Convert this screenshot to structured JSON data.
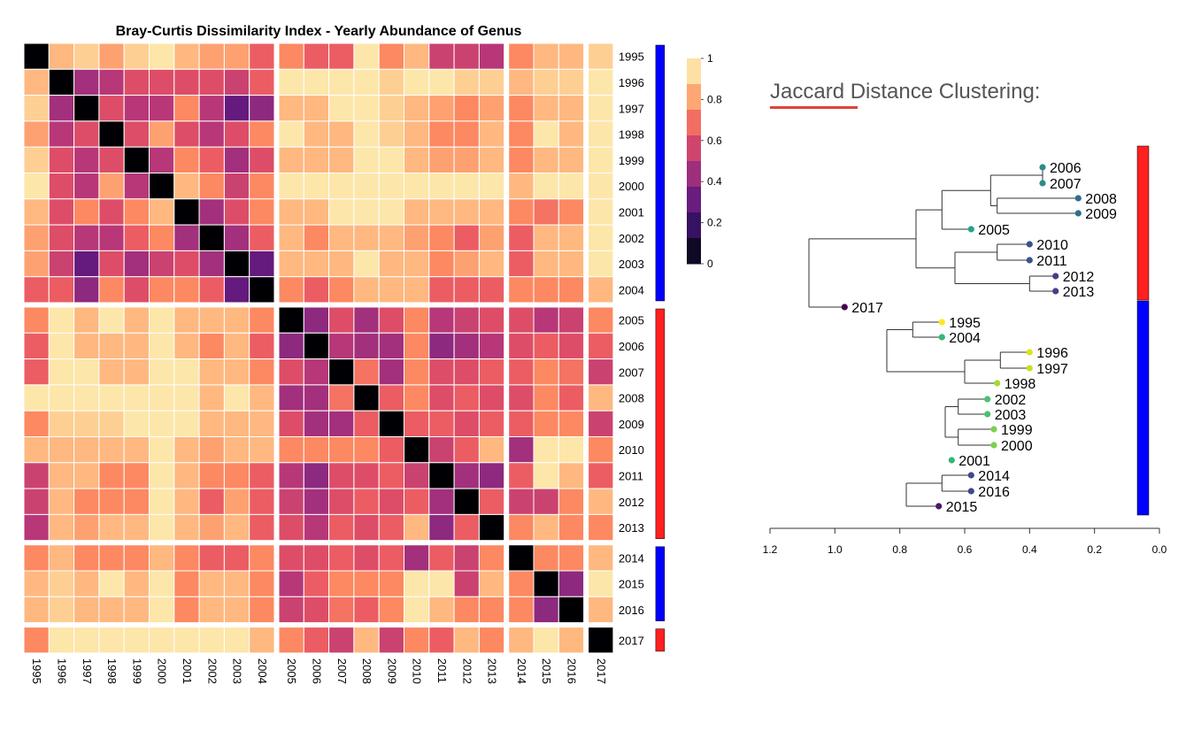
{
  "colors": {
    "scale": [
      "#000004",
      "#1f1147",
      "#51127c",
      "#822681",
      "#b73779",
      "#e75263",
      "#fc8961",
      "#fec488",
      "#fcfdbf"
    ],
    "cluster_red": "#ff2020",
    "cluster_blue": "#0000ff",
    "grid": "#ffffff",
    "text": "#000000"
  },
  "heatmap": {
    "title": "Bray-Curtis Dissimilarity Index - Yearly Abundance of Genus",
    "years": [
      "1995",
      "1996",
      "1997",
      "1998",
      "1999",
      "2000",
      "2001",
      "2002",
      "2003",
      "2004",
      "2005",
      "2006",
      "2007",
      "2008",
      "2009",
      "2010",
      "2011",
      "2012",
      "2013",
      "2014",
      "2015",
      "2016",
      "2017"
    ],
    "cluster_bars": [
      {
        "years": [
          "1995",
          "2004"
        ],
        "color": "blue"
      },
      {
        "years": [
          "2005",
          "2013"
        ],
        "color": "red"
      },
      {
        "years": [
          "2014",
          "2016"
        ],
        "color": "blue"
      },
      {
        "years": [
          "2017",
          "2017"
        ],
        "color": "red"
      }
    ],
    "legend_ticks": [
      "1",
      "0.8",
      "0.6",
      "0.4",
      "0.2",
      "0"
    ]
  },
  "dendrogram": {
    "title_word": "Jaccard",
    "title_rest": " Distance Clustering:",
    "axis_ticks": [
      "1.2",
      "1.0",
      "0.8",
      "0.6",
      "0.4",
      "0.2",
      "0.0"
    ]
  },
  "chart_data": [
    {
      "type": "heatmap",
      "title": "Bray-Curtis Dissimilarity Index - Yearly Abundance of Genus",
      "x": [
        "1995",
        "1996",
        "1997",
        "1998",
        "1999",
        "2000",
        "2001",
        "2002",
        "2003",
        "2004",
        "2005",
        "2006",
        "2007",
        "2008",
        "2009",
        "2010",
        "2011",
        "2012",
        "2013",
        "2014",
        "2015",
        "2016",
        "2017"
      ],
      "y": [
        "1995",
        "1996",
        "1997",
        "1998",
        "1999",
        "2000",
        "2001",
        "2002",
        "2003",
        "2004",
        "2005",
        "2006",
        "2007",
        "2008",
        "2009",
        "2010",
        "2011",
        "2012",
        "2013",
        "2014",
        "2015",
        "2016",
        "2017"
      ],
      "values": [
        [
          0,
          0.85,
          0.9,
          0.8,
          0.9,
          0.95,
          0.85,
          0.8,
          0.8,
          0.65,
          0.75,
          0.65,
          0.65,
          0.95,
          0.75,
          0.85,
          0.55,
          0.55,
          0.5,
          0.75,
          0.85,
          0.85,
          0.9
        ],
        [
          0.85,
          0,
          0.45,
          0.5,
          0.6,
          0.6,
          0.6,
          0.6,
          0.55,
          0.65,
          0.95,
          0.95,
          0.95,
          0.95,
          0.9,
          0.95,
          0.95,
          0.9,
          0.9,
          0.85,
          0.9,
          0.9,
          0.95
        ],
        [
          0.9,
          0.45,
          0,
          0.6,
          0.5,
          0.5,
          0.75,
          0.5,
          0.3,
          0.4,
          0.85,
          0.85,
          0.95,
          0.95,
          0.9,
          0.85,
          0.8,
          0.75,
          0.8,
          0.75,
          0.85,
          0.85,
          0.95
        ],
        [
          0.8,
          0.5,
          0.6,
          0,
          0.6,
          0.8,
          0.6,
          0.5,
          0.6,
          0.75,
          0.95,
          0.85,
          0.85,
          0.95,
          0.9,
          0.85,
          0.75,
          0.75,
          0.85,
          0.75,
          0.95,
          0.85,
          0.95
        ],
        [
          0.9,
          0.6,
          0.5,
          0.6,
          0,
          0.5,
          0.75,
          0.65,
          0.45,
          0.6,
          0.85,
          0.85,
          0.85,
          0.95,
          0.95,
          0.85,
          0.8,
          0.8,
          0.85,
          0.75,
          0.85,
          0.85,
          0.95
        ],
        [
          0.95,
          0.6,
          0.5,
          0.8,
          0.5,
          0,
          0.85,
          0.75,
          0.55,
          0.75,
          0.95,
          0.95,
          0.95,
          0.95,
          0.95,
          0.95,
          0.95,
          0.95,
          0.95,
          0.85,
          0.95,
          0.95,
          0.95
        ],
        [
          0.85,
          0.6,
          0.75,
          0.6,
          0.75,
          0.85,
          0,
          0.45,
          0.6,
          0.75,
          0.85,
          0.85,
          0.95,
          0.95,
          0.95,
          0.85,
          0.85,
          0.85,
          0.85,
          0.75,
          0.7,
          0.75,
          0.95
        ],
        [
          0.8,
          0.6,
          0.5,
          0.5,
          0.65,
          0.75,
          0.45,
          0,
          0.45,
          0.65,
          0.85,
          0.75,
          0.85,
          0.85,
          0.85,
          0.8,
          0.75,
          0.65,
          0.8,
          0.65,
          0.85,
          0.85,
          0.95
        ],
        [
          0.8,
          0.55,
          0.3,
          0.6,
          0.45,
          0.55,
          0.6,
          0.45,
          0,
          0.3,
          0.85,
          0.85,
          0.85,
          0.95,
          0.85,
          0.85,
          0.75,
          0.8,
          0.85,
          0.65,
          0.85,
          0.85,
          0.95
        ],
        [
          0.65,
          0.65,
          0.4,
          0.75,
          0.6,
          0.75,
          0.75,
          0.65,
          0.3,
          0,
          0.75,
          0.65,
          0.75,
          0.85,
          0.85,
          0.85,
          0.65,
          0.65,
          0.65,
          0.75,
          0.75,
          0.75,
          0.85
        ],
        [
          0.75,
          0.95,
          0.85,
          0.95,
          0.85,
          0.95,
          0.85,
          0.85,
          0.85,
          0.75,
          0,
          0.4,
          0.6,
          0.45,
          0.6,
          0.75,
          0.5,
          0.55,
          0.6,
          0.6,
          0.5,
          0.55,
          0.75
        ],
        [
          0.65,
          0.95,
          0.85,
          0.85,
          0.85,
          0.95,
          0.85,
          0.75,
          0.85,
          0.65,
          0.4,
          0,
          0.5,
          0.45,
          0.45,
          0.75,
          0.4,
          0.45,
          0.5,
          0.6,
          0.65,
          0.6,
          0.65
        ],
        [
          0.65,
          0.95,
          0.95,
          0.85,
          0.85,
          0.95,
          0.95,
          0.85,
          0.85,
          0.75,
          0.6,
          0.5,
          0,
          0.7,
          0.45,
          0.75,
          0.6,
          0.6,
          0.65,
          0.65,
          0.75,
          0.7,
          0.55
        ],
        [
          0.95,
          0.95,
          0.95,
          0.95,
          0.95,
          0.95,
          0.95,
          0.85,
          0.95,
          0.85,
          0.45,
          0.45,
          0.7,
          0,
          0.65,
          0.75,
          0.6,
          0.65,
          0.6,
          0.6,
          0.75,
          0.65,
          0.85
        ],
        [
          0.75,
          0.9,
          0.9,
          0.9,
          0.95,
          0.95,
          0.95,
          0.85,
          0.85,
          0.85,
          0.6,
          0.45,
          0.45,
          0.65,
          0,
          0.65,
          0.65,
          0.6,
          0.65,
          0.65,
          0.75,
          0.75,
          0.55
        ],
        [
          0.85,
          0.85,
          0.85,
          0.85,
          0.85,
          0.95,
          0.85,
          0.8,
          0.85,
          0.85,
          0.75,
          0.75,
          0.75,
          0.75,
          0.65,
          0,
          0.55,
          0.65,
          0.85,
          0.45,
          0.95,
          0.95,
          0.75
        ],
        [
          0.55,
          0.85,
          0.85,
          0.75,
          0.75,
          0.95,
          0.85,
          0.75,
          0.75,
          0.65,
          0.5,
          0.4,
          0.6,
          0.6,
          0.65,
          0.55,
          0,
          0.45,
          0.4,
          0.65,
          0.95,
          0.85,
          0.65
        ],
        [
          0.55,
          0.85,
          0.75,
          0.75,
          0.75,
          0.95,
          0.85,
          0.65,
          0.8,
          0.65,
          0.55,
          0.45,
          0.6,
          0.65,
          0.6,
          0.65,
          0.45,
          0,
          0.65,
          0.55,
          0.55,
          0.75,
          0.85
        ],
        [
          0.5,
          0.85,
          0.8,
          0.85,
          0.85,
          0.95,
          0.85,
          0.8,
          0.85,
          0.65,
          0.6,
          0.5,
          0.65,
          0.6,
          0.65,
          0.85,
          0.4,
          0.65,
          0,
          0.75,
          0.85,
          0.75,
          0.75
        ],
        [
          0.75,
          0.85,
          0.75,
          0.75,
          0.75,
          0.85,
          0.75,
          0.65,
          0.65,
          0.75,
          0.6,
          0.6,
          0.65,
          0.6,
          0.65,
          0.45,
          0.65,
          0.55,
          0.75,
          0,
          0.75,
          0.75,
          0.85
        ],
        [
          0.85,
          0.9,
          0.85,
          0.95,
          0.85,
          0.95,
          0.75,
          0.85,
          0.85,
          0.75,
          0.5,
          0.65,
          0.75,
          0.75,
          0.75,
          0.95,
          0.95,
          0.55,
          0.85,
          0.75,
          0,
          0.4,
          0.95
        ],
        [
          0.85,
          0.9,
          0.85,
          0.85,
          0.85,
          0.95,
          0.75,
          0.85,
          0.85,
          0.75,
          0.55,
          0.6,
          0.7,
          0.65,
          0.75,
          0.95,
          0.85,
          0.75,
          0.75,
          0.75,
          0.4,
          0,
          0.85
        ],
        [
          0.75,
          0.95,
          0.95,
          0.95,
          0.95,
          0.95,
          0.95,
          0.95,
          0.95,
          0.85,
          0.75,
          0.65,
          0.55,
          0.85,
          0.55,
          0.75,
          0.65,
          0.85,
          0.75,
          0.85,
          0.95,
          0.85,
          0
        ]
      ],
      "color_scale": "magma",
      "vlim": [
        0,
        1
      ]
    },
    {
      "type": "dendrogram",
      "title": "Jaccard Distance Clustering:",
      "xlim": [
        1.2,
        0.0
      ],
      "leaves": [
        {
          "label": "2006",
          "height": 0.36,
          "color": "#2e8a8c"
        },
        {
          "label": "2007",
          "height": 0.36,
          "color": "#2e8a8c"
        },
        {
          "label": "2008",
          "height": 0.25,
          "color": "#2e6e8e"
        },
        {
          "label": "2009",
          "height": 0.25,
          "color": "#2e6e8e"
        },
        {
          "label": "2005",
          "height": 0.58,
          "color": "#25a18e"
        },
        {
          "label": "2010",
          "height": 0.4,
          "color": "#3b528b"
        },
        {
          "label": "2011",
          "height": 0.4,
          "color": "#3b528b"
        },
        {
          "label": "2012",
          "height": 0.32,
          "color": "#424086"
        },
        {
          "label": "2013",
          "height": 0.32,
          "color": "#424086"
        },
        {
          "label": "2017",
          "height": 0.97,
          "color": "#440154"
        },
        {
          "label": "1995",
          "height": 0.67,
          "color": "#fde725"
        },
        {
          "label": "2004",
          "height": 0.67,
          "color": "#35b779"
        },
        {
          "label": "1996",
          "height": 0.4,
          "color": "#dde318"
        },
        {
          "label": "1997",
          "height": 0.4,
          "color": "#c5e021"
        },
        {
          "label": "1998",
          "height": 0.5,
          "color": "#a2da37"
        },
        {
          "label": "2002",
          "height": 0.53,
          "color": "#4ac16d"
        },
        {
          "label": "2003",
          "height": 0.53,
          "color": "#4ac16d"
        },
        {
          "label": "1999",
          "height": 0.51,
          "color": "#7ad151"
        },
        {
          "label": "2000",
          "height": 0.51,
          "color": "#7ad151"
        },
        {
          "label": "2001",
          "height": 0.64,
          "color": "#35b779"
        },
        {
          "label": "2014",
          "height": 0.58,
          "color": "#3e4989"
        },
        {
          "label": "2016",
          "height": 0.58,
          "color": "#3e4989"
        },
        {
          "label": "2015",
          "height": 0.68,
          "color": "#48186a"
        }
      ],
      "merges": [
        {
          "children": [
            "2006",
            "2007"
          ],
          "height": 0.36
        },
        {
          "children": [
            "2008",
            "2009"
          ],
          "height": 0.5
        },
        {
          "children": [
            "2006-2007",
            "2008-2009"
          ],
          "height": 0.52
        },
        {
          "children": [
            "2005",
            "2006-2009"
          ],
          "height": 0.67
        },
        {
          "children": [
            "2010",
            "2011"
          ],
          "height": 0.5
        },
        {
          "children": [
            "2012",
            "2013"
          ],
          "height": 0.4
        },
        {
          "children": [
            "2010-2011",
            "2012-2013"
          ],
          "height": 0.63
        },
        {
          "children": [
            "2005-2009",
            "2010-2013"
          ],
          "height": 0.75
        },
        {
          "children": [
            "2017",
            "2005-2013"
          ],
          "height": 1.08
        },
        {
          "children": [
            "1995",
            "2004"
          ],
          "height": 0.76
        },
        {
          "children": [
            "1996",
            "1997"
          ],
          "height": 0.49
        },
        {
          "children": [
            "1996-1997",
            "1998"
          ],
          "height": 0.6
        },
        {
          "children": [
            "1995-2004",
            "1996-1998"
          ],
          "height": 0.84
        },
        {
          "children": [
            "2002",
            "2003"
          ],
          "height": 0.62
        },
        {
          "children": [
            "1999",
            "2000"
          ],
          "height": 0.62
        },
        {
          "children": [
            "2002-2003",
            "1999-2000"
          ],
          "height": 0.66
        },
        {
          "children": [
            "2001",
            "1999-2003"
          ],
          "height": 0.74
        },
        {
          "children": [
            "1995-1998",
            "1999-2003"
          ],
          "height": 0.94
        },
        {
          "children": [
            "2014",
            "2016"
          ],
          "height": 0.67
        },
        {
          "children": [
            "2015",
            "2014-2016"
          ],
          "height": 0.78
        },
        {
          "children": [
            "1995-2003",
            "2014-2016"
          ],
          "height": 0.97
        },
        {
          "children": [
            "1995-2016",
            "2005-2017"
          ],
          "height": 1.22
        }
      ],
      "cluster_bars": [
        {
          "label_range": [
            "2006",
            "2013"
          ],
          "color": "red"
        },
        {
          "label_range": [
            "1995",
            "2015"
          ],
          "color": "blue"
        }
      ]
    }
  ]
}
